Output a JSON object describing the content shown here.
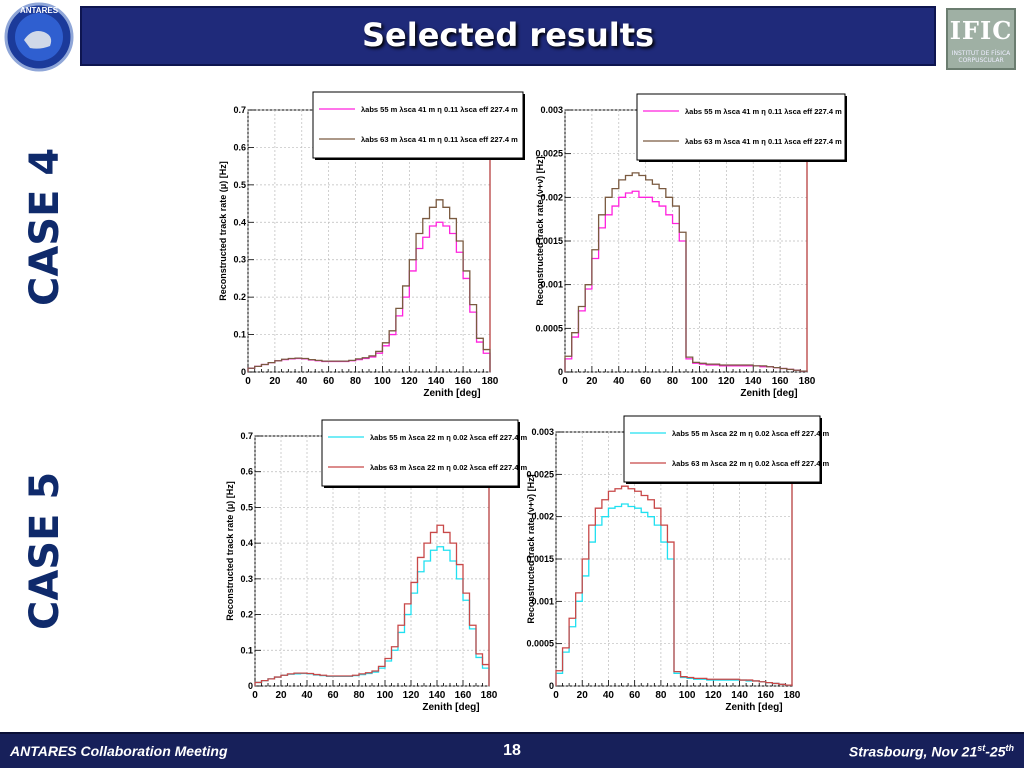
{
  "title": "Selected results",
  "logos": {
    "left": "ANTARES",
    "right_main": "IFIC",
    "right_sub1": "INSTITUT DE FÍSICA",
    "right_sub2": "CORPUSCULAR"
  },
  "case_labels": [
    "CASE 4",
    "CASE 5"
  ],
  "footer": {
    "left": "ANTARES Collaboration Meeting",
    "page": "18",
    "right_prefix": "Strasbourg, Nov 21",
    "right_sup1": "st",
    "right_mid": "-25",
    "right_sup2": "th"
  },
  "colors": {
    "magenta": "#ff22dd",
    "brown": "#7a5a40",
    "cyan": "#20e0f0",
    "red": "#c84848"
  },
  "chart_data": [
    {
      "type": "line",
      "xlabel": "Zenith [deg]",
      "ylabel": "Reconstructed track rate (μ) [Hz]",
      "xlim": [
        0,
        180
      ],
      "ylim": [
        0,
        0.7
      ],
      "xticks": [
        "0",
        "20",
        "40",
        "60",
        "80",
        "100",
        "120",
        "140",
        "160",
        "180"
      ],
      "yticks": [
        "0",
        "0.1",
        "0.2",
        "0.3",
        "0.4",
        "0.5",
        "0.6",
        "0.7"
      ],
      "grid": true,
      "legend_position": "top",
      "x": [
        0,
        5,
        10,
        15,
        20,
        25,
        30,
        35,
        40,
        45,
        50,
        55,
        60,
        65,
        70,
        75,
        80,
        85,
        90,
        95,
        100,
        105,
        110,
        115,
        120,
        125,
        130,
        135,
        140,
        145,
        150,
        155,
        160,
        165,
        170,
        175
      ],
      "series": [
        {
          "name": "λabs 55 m λsca 41 m η 0.11 λsca eff 227.4 m",
          "color_key": "magenta",
          "values": [
            0.01,
            0.015,
            0.02,
            0.025,
            0.03,
            0.033,
            0.035,
            0.036,
            0.035,
            0.032,
            0.03,
            0.028,
            0.028,
            0.028,
            0.028,
            0.03,
            0.033,
            0.036,
            0.04,
            0.05,
            0.07,
            0.1,
            0.15,
            0.2,
            0.27,
            0.33,
            0.36,
            0.39,
            0.4,
            0.39,
            0.37,
            0.32,
            0.25,
            0.16,
            0.08,
            0.05
          ]
        },
        {
          "name": "λabs 63 m λsca 41 m η 0.11 λsca eff 227.4 m",
          "color_key": "brown",
          "values": [
            0.01,
            0.015,
            0.02,
            0.025,
            0.03,
            0.034,
            0.036,
            0.037,
            0.036,
            0.033,
            0.031,
            0.029,
            0.029,
            0.029,
            0.029,
            0.031,
            0.035,
            0.038,
            0.043,
            0.055,
            0.078,
            0.11,
            0.17,
            0.23,
            0.3,
            0.37,
            0.41,
            0.44,
            0.46,
            0.44,
            0.41,
            0.35,
            0.27,
            0.18,
            0.09,
            0.06
          ]
        }
      ]
    },
    {
      "type": "line",
      "xlabel": "Zenith [deg]",
      "ylabel": "Reconstructed track rate (ν+ν̄) [Hz]",
      "xlim": [
        0,
        180
      ],
      "ylim": [
        0,
        0.003
      ],
      "xticks": [
        "0",
        "20",
        "40",
        "60",
        "80",
        "100",
        "120",
        "140",
        "160",
        "180"
      ],
      "yticks": [
        "0",
        "0.0005",
        "0.001",
        "0.0015",
        "0.002",
        "0.0025",
        "0.003"
      ],
      "grid": true,
      "legend_position": "top-right",
      "x": [
        0,
        5,
        10,
        15,
        20,
        25,
        30,
        35,
        40,
        45,
        50,
        55,
        60,
        65,
        70,
        75,
        80,
        85,
        90,
        95,
        100,
        105,
        110,
        115,
        120,
        125,
        130,
        135,
        140,
        145,
        150,
        155,
        160,
        165,
        170,
        175
      ],
      "series": [
        {
          "name": "λabs 55 m λsca 41 m η 0.11 λsca eff 227.4 m",
          "color_key": "magenta",
          "values": [
            0.00015,
            0.0004,
            0.0007,
            0.00095,
            0.0013,
            0.00165,
            0.0018,
            0.0019,
            0.002,
            0.00205,
            0.00207,
            0.002,
            0.002,
            0.00195,
            0.0019,
            0.0018,
            0.0017,
            0.0015,
            0.00015,
            0.0001,
            9e-05,
            8e-05,
            8e-05,
            7e-05,
            7e-05,
            7e-05,
            7e-05,
            7e-05,
            7e-05,
            6e-05,
            6e-05,
            5e-05,
            4e-05,
            3e-05,
            2e-05,
            1e-05
          ]
        },
        {
          "name": "λabs 63 m λsca 41 m η 0.11 λsca eff 227.4 m",
          "color_key": "brown",
          "values": [
            0.00018,
            0.00045,
            0.00075,
            0.001,
            0.0014,
            0.0018,
            0.002,
            0.0021,
            0.0022,
            0.00225,
            0.00228,
            0.00225,
            0.0022,
            0.00215,
            0.0021,
            0.002,
            0.0019,
            0.0016,
            0.00017,
            0.00011,
            0.0001,
            9e-05,
            9e-05,
            8e-05,
            8e-05,
            8e-05,
            8e-05,
            8e-05,
            7e-05,
            7e-05,
            6e-05,
            5e-05,
            4e-05,
            3e-05,
            2e-05,
            1e-05
          ]
        }
      ]
    },
    {
      "type": "line",
      "xlabel": "Zenith [deg]",
      "ylabel": "Reconstructed track rate (μ) [Hz]",
      "xlim": [
        0,
        180
      ],
      "ylim": [
        0,
        0.7
      ],
      "xticks": [
        "0",
        "20",
        "40",
        "60",
        "80",
        "100",
        "120",
        "140",
        "160",
        "180"
      ],
      "yticks": [
        "0",
        "0.1",
        "0.2",
        "0.3",
        "0.4",
        "0.5",
        "0.6",
        "0.7"
      ],
      "grid": true,
      "legend_position": "top-right",
      "x": [
        0,
        5,
        10,
        15,
        20,
        25,
        30,
        35,
        40,
        45,
        50,
        55,
        60,
        65,
        70,
        75,
        80,
        85,
        90,
        95,
        100,
        105,
        110,
        115,
        120,
        125,
        130,
        135,
        140,
        145,
        150,
        155,
        160,
        165,
        170,
        175
      ],
      "series": [
        {
          "name": "λabs 55 m λsca 22 m η 0.02 λsca eff 227.4 m",
          "color_key": "cyan",
          "values": [
            0.01,
            0.015,
            0.02,
            0.025,
            0.03,
            0.033,
            0.034,
            0.035,
            0.034,
            0.031,
            0.029,
            0.027,
            0.027,
            0.027,
            0.027,
            0.029,
            0.032,
            0.035,
            0.039,
            0.05,
            0.07,
            0.1,
            0.15,
            0.2,
            0.26,
            0.32,
            0.35,
            0.38,
            0.39,
            0.38,
            0.35,
            0.3,
            0.24,
            0.16,
            0.08,
            0.05
          ]
        },
        {
          "name": "λabs 63 m λsca 22 m η 0.02 λsca eff 227.4 m",
          "color_key": "red",
          "values": [
            0.01,
            0.015,
            0.02,
            0.025,
            0.03,
            0.034,
            0.036,
            0.036,
            0.035,
            0.032,
            0.03,
            0.028,
            0.028,
            0.028,
            0.028,
            0.03,
            0.034,
            0.037,
            0.042,
            0.055,
            0.077,
            0.11,
            0.17,
            0.23,
            0.29,
            0.36,
            0.4,
            0.43,
            0.45,
            0.43,
            0.4,
            0.34,
            0.26,
            0.17,
            0.09,
            0.06
          ]
        }
      ]
    },
    {
      "type": "line",
      "xlabel": "Zenith [deg]",
      "ylabel": "Reconstructed track rate (ν+ν̄) [Hz]",
      "xlim": [
        0,
        180
      ],
      "ylim": [
        0,
        0.003
      ],
      "xticks": [
        "0",
        "20",
        "40",
        "60",
        "80",
        "100",
        "120",
        "140",
        "160",
        "180"
      ],
      "yticks": [
        "0",
        "0.0005",
        "0.001",
        "0.0015",
        "0.002",
        "0.0025",
        "0.003"
      ],
      "grid": true,
      "legend_position": "top-right",
      "x": [
        0,
        5,
        10,
        15,
        20,
        25,
        30,
        35,
        40,
        45,
        50,
        55,
        60,
        65,
        70,
        75,
        80,
        85,
        90,
        95,
        100,
        105,
        110,
        115,
        120,
        125,
        130,
        135,
        140,
        145,
        150,
        155,
        160,
        165,
        170,
        175
      ],
      "series": [
        {
          "name": "λabs 55 m λsca 22 m η 0.02 λsca eff 227.4 m",
          "color_key": "cyan",
          "values": [
            0.00015,
            0.0004,
            0.0007,
            0.001,
            0.0013,
            0.0017,
            0.0019,
            0.002,
            0.0021,
            0.00212,
            0.00215,
            0.00212,
            0.0021,
            0.00205,
            0.002,
            0.0019,
            0.0017,
            0.0015,
            0.00015,
            0.0001,
            9e-05,
            8e-05,
            8e-05,
            7e-05,
            7e-05,
            7e-05,
            7e-05,
            7e-05,
            7e-05,
            6e-05,
            6e-05,
            5e-05,
            4e-05,
            3e-05,
            2e-05,
            1e-05
          ]
        },
        {
          "name": "λabs 63 m λsca 22 m η 0.02 λsca eff 227.4 m",
          "color_key": "red",
          "values": [
            0.00018,
            0.00045,
            0.0008,
            0.0011,
            0.0015,
            0.0019,
            0.0021,
            0.0022,
            0.0023,
            0.00233,
            0.00236,
            0.00233,
            0.0023,
            0.00225,
            0.0022,
            0.0021,
            0.0019,
            0.0017,
            0.00017,
            0.00011,
            0.0001,
            9e-05,
            9e-05,
            8e-05,
            8e-05,
            8e-05,
            8e-05,
            8e-05,
            7e-05,
            7e-05,
            6e-05,
            5e-05,
            4e-05,
            3e-05,
            2e-05,
            1e-05
          ]
        }
      ]
    }
  ]
}
